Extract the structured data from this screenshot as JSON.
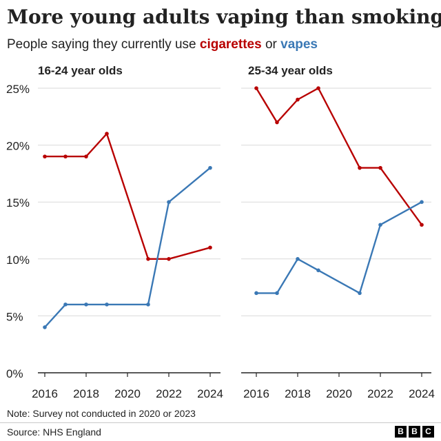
{
  "title": "More young adults vaping than smoking",
  "subtitle": {
    "prefix": "People saying they currently use ",
    "cigarettes": "cigarettes",
    "middle": " or ",
    "vapes": "vapes"
  },
  "colors": {
    "cigarettes": "#b80000",
    "vapes": "#3a78b5",
    "grid": "#d9d9d9",
    "axis": "#222222"
  },
  "note": "Note: Survey not conducted in 2020 or 2023",
  "source": "Source: NHS England",
  "logo_letters": [
    "B",
    "B",
    "C"
  ],
  "chart_data": [
    {
      "type": "line",
      "title": "16-24 year olds",
      "xlim": [
        2016,
        2024
      ],
      "ylim": [
        0,
        25
      ],
      "x_ticks": [
        2016,
        2018,
        2020,
        2022,
        2024
      ],
      "y_ticks": [
        0,
        5,
        10,
        15,
        20,
        25
      ],
      "y_tick_labels": [
        "0%",
        "5%",
        "10%",
        "15%",
        "20%",
        "25%"
      ],
      "grid": true,
      "series": [
        {
          "key": "cigarettes",
          "x": [
            2016,
            2017,
            2018,
            2019,
            2021,
            2022,
            2024
          ],
          "values": [
            19,
            19,
            19,
            21,
            10,
            10,
            11
          ]
        },
        {
          "key": "vapes",
          "x": [
            2016,
            2017,
            2018,
            2019,
            2021,
            2022,
            2024
          ],
          "values": [
            4,
            6,
            6,
            6,
            6,
            15,
            18
          ]
        }
      ]
    },
    {
      "type": "line",
      "title": "25-34 year olds",
      "xlim": [
        2016,
        2024
      ],
      "ylim": [
        0,
        25
      ],
      "x_ticks": [
        2016,
        2018,
        2020,
        2022,
        2024
      ],
      "grid": true,
      "series": [
        {
          "key": "cigarettes",
          "x": [
            2016,
            2017,
            2018,
            2019,
            2021,
            2022,
            2024
          ],
          "values": [
            25,
            22,
            24,
            25,
            18,
            18,
            13
          ]
        },
        {
          "key": "vapes",
          "x": [
            2016,
            2017,
            2018,
            2019,
            2021,
            2022,
            2024
          ],
          "values": [
            7,
            7,
            10,
            9,
            7,
            13,
            15
          ]
        }
      ]
    }
  ]
}
